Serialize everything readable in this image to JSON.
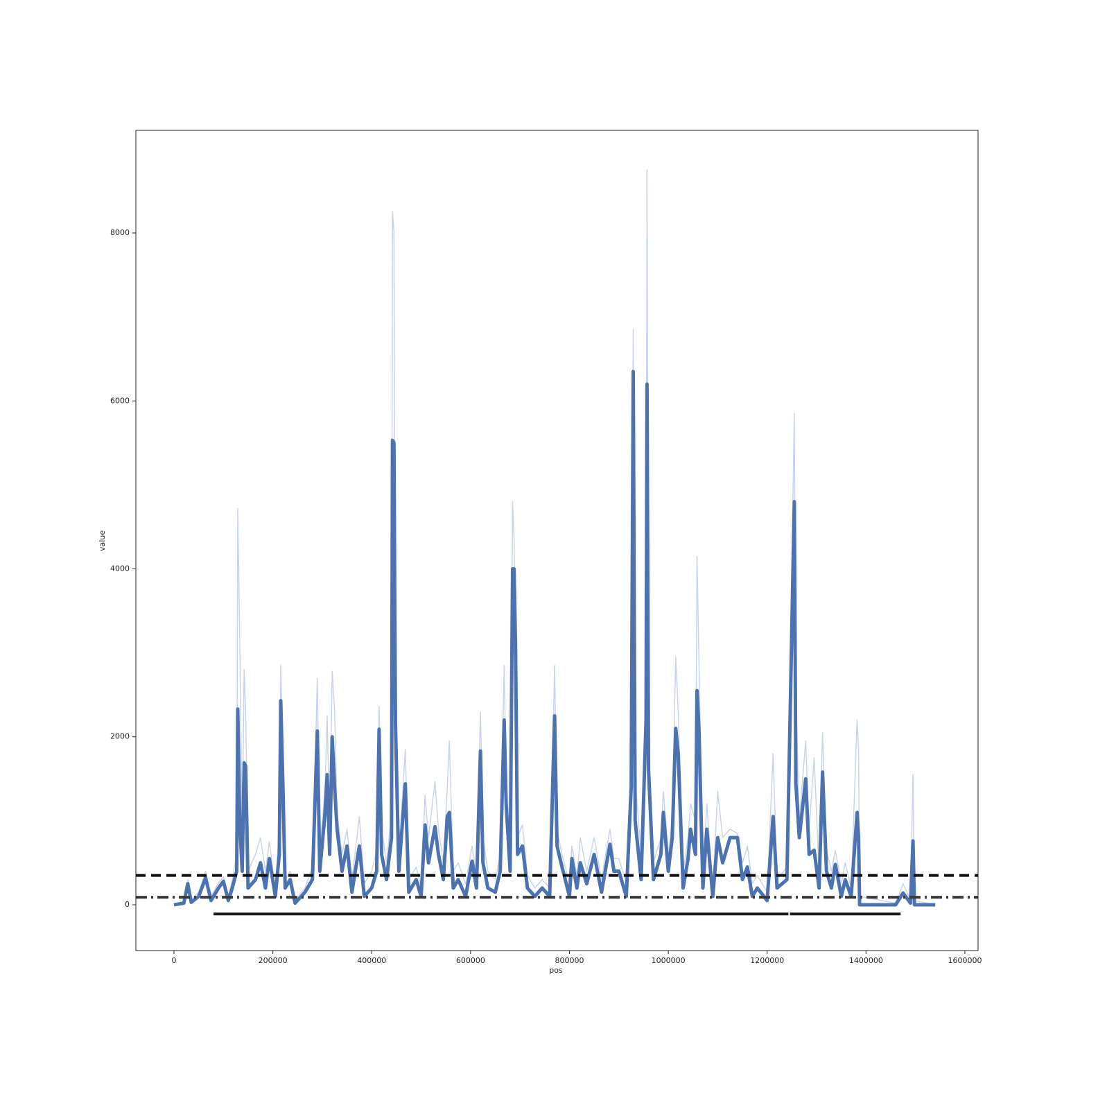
{
  "chart_data": {
    "type": "line",
    "xlabel": "pos",
    "ylabel": "value",
    "xlim": [
      -77100,
      1626700
    ],
    "ylim": [
      -545,
      9222
    ],
    "xticks": [
      0,
      200000,
      400000,
      600000,
      800000,
      1000000,
      1200000,
      1400000,
      1600000
    ],
    "yticks": [
      0,
      2000,
      4000,
      6000,
      8000
    ],
    "x": [
      0,
      20000,
      28000,
      35000,
      50000,
      64000,
      75000,
      90000,
      100000,
      110000,
      118000,
      127000,
      129000,
      133000,
      138000,
      142000,
      145000,
      150000,
      165000,
      175000,
      185000,
      193000,
      205000,
      213000,
      216000,
      220000,
      225000,
      235000,
      245000,
      265000,
      280000,
      290000,
      295000,
      305000,
      310000,
      315000,
      320000,
      325000,
      330000,
      340000,
      350000,
      360000,
      375000,
      385000,
      400000,
      410000,
      415000,
      420000,
      430000,
      440000,
      442000,
      445000,
      448000,
      455000,
      468000,
      475000,
      490000,
      500000,
      508000,
      515000,
      528000,
      535000,
      545000,
      553000,
      557000,
      565000,
      575000,
      590000,
      603000,
      612000,
      620000,
      625000,
      635000,
      650000,
      660000,
      668000,
      672000,
      680000,
      685000,
      688000,
      691000,
      695000,
      705000,
      715000,
      730000,
      745000,
      760000,
      770000,
      775000,
      785000,
      800000,
      805000,
      815000,
      822000,
      835000,
      850000,
      865000,
      882000,
      890000,
      900000,
      915000,
      925000,
      929000,
      933000,
      945000,
      955000,
      957000,
      960000,
      970000,
      985000,
      990000,
      1000000,
      1008000,
      1015000,
      1020000,
      1030000,
      1040000,
      1045000,
      1055000,
      1058000,
      1062000,
      1070000,
      1078000,
      1090000,
      1100000,
      1110000,
      1125000,
      1140000,
      1150000,
      1160000,
      1170000,
      1180000,
      1200000,
      1212000,
      1220000,
      1240000,
      1255000,
      1258000,
      1265000,
      1278000,
      1285000,
      1295000,
      1305000,
      1312000,
      1320000,
      1330000,
      1338000,
      1350000,
      1358000,
      1370000,
      1382000,
      1385000,
      1387000,
      1460000,
      1475000,
      1490000,
      1495000,
      1498000,
      1540000
    ],
    "series": [
      {
        "color": "#c9d4e8",
        "values": [
          0,
          40,
          300,
          60,
          150,
          400,
          100,
          260,
          330,
          100,
          300,
          600,
          4720,
          3200,
          800,
          2800,
          2300,
          400,
          600,
          800,
          400,
          750,
          200,
          900,
          2850,
          1800,
          300,
          400,
          60,
          200,
          450,
          2700,
          700,
          1300,
          2250,
          900,
          2780,
          2300,
          1100,
          600,
          900,
          300,
          1050,
          250,
          400,
          650,
          2360,
          900,
          500,
          1100,
          8260,
          8000,
          2500,
          600,
          1850,
          300,
          450,
          200,
          1300,
          800,
          1470,
          900,
          500,
          1400,
          1950,
          400,
          500,
          250,
          700,
          300,
          2300,
          800,
          400,
          300,
          600,
          2850,
          1500,
          600,
          4800,
          4350,
          3200,
          800,
          950,
          350,
          200,
          300,
          200,
          2850,
          900,
          600,
          250,
          700,
          350,
          800,
          400,
          800,
          300,
          900,
          550,
          550,
          250,
          1600,
          6850,
          1500,
          600,
          2500,
          8750,
          2000,
          500,
          800,
          1350,
          600,
          1000,
          2950,
          2300,
          400,
          800,
          1200,
          1000,
          4150,
          2900,
          400,
          1200,
          200,
          1350,
          800,
          900,
          850,
          500,
          700,
          250,
          350,
          150,
          1800,
          300,
          450,
          5850,
          2500,
          1000,
          1950,
          900,
          1750,
          400,
          2050,
          650,
          400,
          650,
          250,
          500,
          200,
          2200,
          1850,
          100,
          20,
          250,
          60,
          1550,
          50,
          0
        ]
      },
      {
        "color": "#4c72b0",
        "values": [
          0,
          20,
          250,
          30,
          100,
          320,
          50,
          200,
          280,
          50,
          200,
          400,
          2330,
          1000,
          400,
          1690,
          1650,
          200,
          300,
          500,
          200,
          550,
          100,
          600,
          2430,
          1500,
          200,
          300,
          20,
          150,
          300,
          2070,
          400,
          1050,
          1550,
          600,
          2000,
          1400,
          900,
          400,
          700,
          150,
          700,
          100,
          200,
          400,
          2090,
          600,
          300,
          800,
          5530,
          5500,
          2150,
          400,
          1440,
          150,
          300,
          100,
          950,
          500,
          930,
          600,
          300,
          1050,
          1100,
          200,
          300,
          100,
          520,
          200,
          1830,
          500,
          200,
          150,
          400,
          2200,
          1200,
          400,
          4000,
          4000,
          3100,
          600,
          700,
          200,
          100,
          200,
          100,
          2250,
          700,
          450,
          100,
          550,
          200,
          500,
          250,
          600,
          150,
          720,
          400,
          400,
          100,
          1400,
          6350,
          1000,
          300,
          2200,
          6200,
          1600,
          300,
          600,
          1100,
          400,
          800,
          2100,
          1800,
          200,
          550,
          900,
          600,
          2550,
          2100,
          200,
          900,
          100,
          800,
          500,
          800,
          800,
          300,
          450,
          100,
          200,
          50,
          1050,
          200,
          300,
          4800,
          1450,
          800,
          1500,
          600,
          650,
          200,
          1580,
          400,
          200,
          480,
          100,
          300,
          100,
          1100,
          800,
          0,
          0,
          140,
          20,
          760,
          0,
          0
        ]
      }
    ],
    "hlines": [
      {
        "value": 350,
        "color": "#111111",
        "dash": "14,8"
      },
      {
        "value": 90,
        "color": "#3a3a3a",
        "dash": "16,6,3,6"
      }
    ],
    "segments": [
      {
        "value": -110,
        "x": [
          80000,
          1243000
        ],
        "color": "#1a1a1a"
      },
      {
        "value": -110,
        "x": [
          1246000,
          1470000
        ],
        "color": "#1a1a1a"
      }
    ]
  }
}
